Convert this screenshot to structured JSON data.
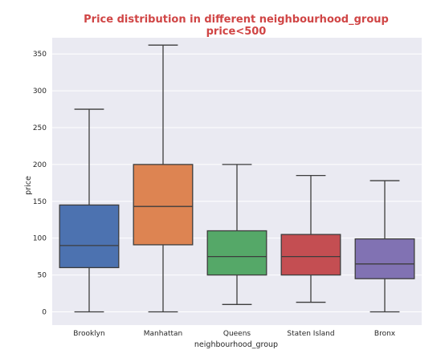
{
  "chart_data": {
    "type": "box",
    "title": "Price distribution in different neighbourhood_group",
    "subtitle": "price<500",
    "xlabel": "neighbourhood_group",
    "ylabel": "price",
    "ylim": [
      -18,
      372
    ],
    "yticks": [
      0,
      50,
      100,
      150,
      200,
      250,
      300,
      350
    ],
    "grid": true,
    "categories": [
      "Brooklyn",
      "Manhattan",
      "Queens",
      "Staten Island",
      "Bronx"
    ],
    "boxes": [
      {
        "name": "Brooklyn",
        "whisker_low": 0,
        "q1": 60,
        "median": 90,
        "q3": 145,
        "whisker_high": 275,
        "color": "#4c72b0"
      },
      {
        "name": "Manhattan",
        "whisker_low": 0,
        "q1": 91,
        "median": 143,
        "q3": 200,
        "whisker_high": 362,
        "color": "#dd8452"
      },
      {
        "name": "Queens",
        "whisker_low": 10,
        "q1": 50,
        "median": 75,
        "q3": 110,
        "whisker_high": 200,
        "color": "#55a868"
      },
      {
        "name": "Staten Island",
        "whisker_low": 13,
        "q1": 50,
        "median": 75,
        "q3": 105,
        "whisker_high": 185,
        "color": "#c44e52"
      },
      {
        "name": "Bronx",
        "whisker_low": 0,
        "q1": 45,
        "median": 65,
        "q3": 99,
        "whisker_high": 178,
        "color": "#8172b3"
      }
    ],
    "colors": {
      "title": "#d04545",
      "plot_background": "#eaeaf2",
      "grid": "#ffffff",
      "box_edge": "#3d3d3d"
    }
  }
}
